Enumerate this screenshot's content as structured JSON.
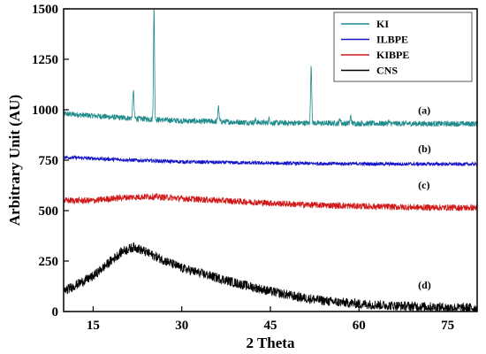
{
  "chart_data": {
    "type": "line",
    "title": "",
    "xlabel": "2 Theta",
    "ylabel": "Arbitrary Unit (AU)",
    "xlim": [
      10,
      80
    ],
    "ylim": [
      0,
      1500
    ],
    "x_ticks": [
      15,
      30,
      45,
      60,
      75
    ],
    "y_ticks": [
      0,
      250,
      500,
      750,
      1000,
      1250,
      1500
    ],
    "grid": false,
    "legend_position": "top-right",
    "series": [
      {
        "name": "KI",
        "color": "#1f8a8a",
        "baseline_points": [
          [
            10,
            980
          ],
          [
            20,
            960
          ],
          [
            30,
            945
          ],
          [
            45,
            935
          ],
          [
            60,
            932
          ],
          [
            80,
            930
          ]
        ],
        "noise": 14,
        "peaks": [
          [
            21.8,
            1100,
            0.2
          ],
          [
            25.3,
            1500,
            0.18
          ],
          [
            36.2,
            1018,
            0.2
          ],
          [
            42.5,
            950,
            0.2
          ],
          [
            44.8,
            957,
            0.2
          ],
          [
            51.9,
            1210,
            0.2
          ],
          [
            56.8,
            956,
            0.2
          ],
          [
            58.6,
            968,
            0.2
          ],
          [
            65,
            942,
            0.2
          ]
        ],
        "annotation": "(a)"
      },
      {
        "name": "ILBPE",
        "color": "#1414c8",
        "baseline_points": [
          [
            10,
            765
          ],
          [
            20,
            752
          ],
          [
            30,
            742
          ],
          [
            45,
            735
          ],
          [
            60,
            732
          ],
          [
            80,
            730
          ]
        ],
        "noise": 9,
        "peaks": [],
        "annotation": "(b)"
      },
      {
        "name": "KIBPE",
        "color": "#d01a1a",
        "baseline_points": [
          [
            10,
            550
          ],
          [
            15,
            550
          ],
          [
            20,
            565
          ],
          [
            25,
            570
          ],
          [
            30,
            560
          ],
          [
            40,
            545
          ],
          [
            50,
            530
          ],
          [
            60,
            522
          ],
          [
            70,
            516
          ],
          [
            80,
            514
          ]
        ],
        "noise": 16,
        "peaks": [],
        "annotation": "(c)"
      },
      {
        "name": "CNS",
        "color": "#000000",
        "baseline_points": [
          [
            10,
            100
          ],
          [
            15,
            175
          ],
          [
            20,
            300
          ],
          [
            22,
            320
          ],
          [
            25,
            280
          ],
          [
            30,
            215
          ],
          [
            35,
            175
          ],
          [
            40,
            135
          ],
          [
            45,
            100
          ],
          [
            50,
            70
          ],
          [
            55,
            50
          ],
          [
            60,
            38
          ],
          [
            65,
            30
          ],
          [
            70,
            25
          ],
          [
            75,
            20
          ],
          [
            80,
            17
          ]
        ],
        "noise": 24,
        "peaks": [],
        "annotation": "(d)"
      }
    ],
    "annotations": [
      {
        "text": "(a)",
        "x": 70,
        "y": 980
      },
      {
        "text": "(b)",
        "x": 70,
        "y": 790
      },
      {
        "text": "(c)",
        "x": 70,
        "y": 610
      },
      {
        "text": "(d)",
        "x": 70,
        "y": 115
      }
    ]
  }
}
